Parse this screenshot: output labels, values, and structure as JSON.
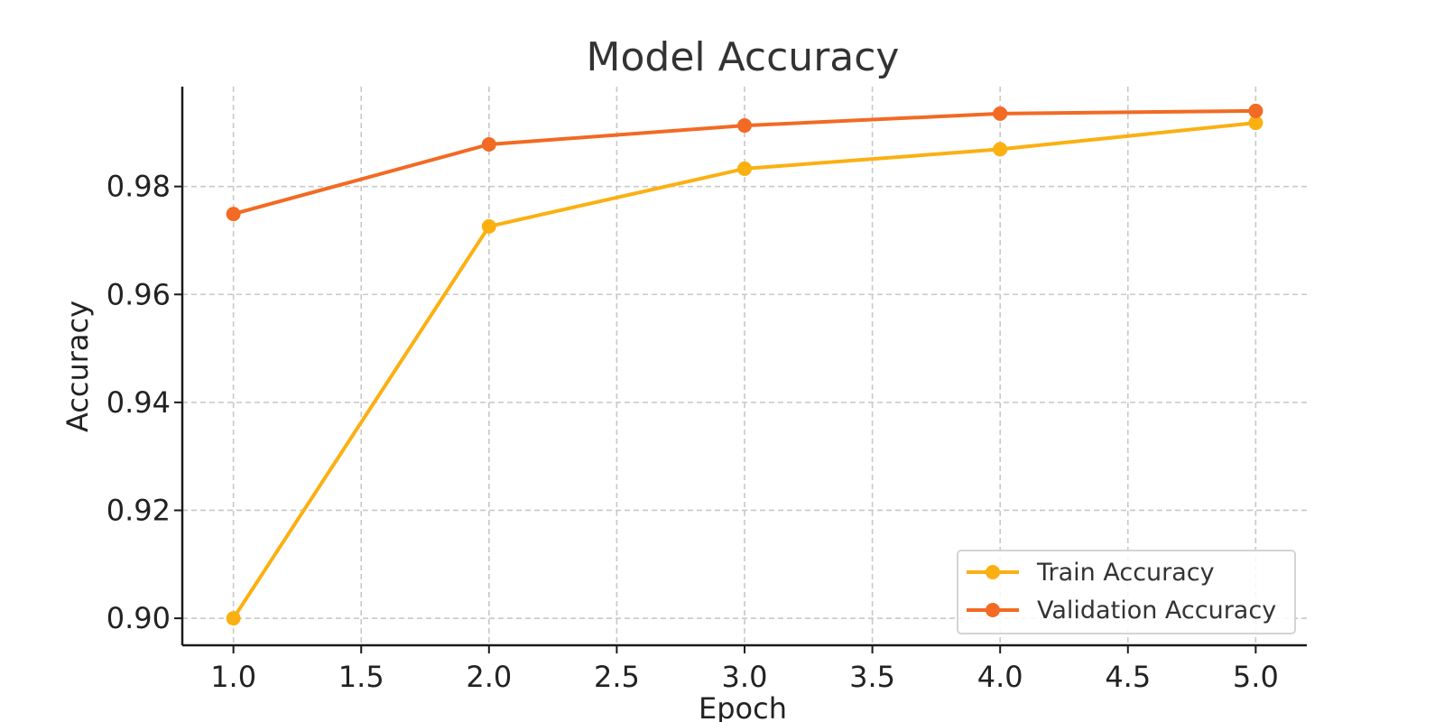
{
  "chart_data": {
    "type": "line",
    "title": "Model Accuracy",
    "xlabel": "Epoch",
    "ylabel": "Accuracy",
    "x": [
      1.0,
      2.0,
      3.0,
      4.0,
      5.0
    ],
    "xlim": [
      0.8,
      5.2
    ],
    "ylim": [
      0.895,
      0.9985
    ],
    "x_ticks": [
      1.0,
      1.5,
      2.0,
      2.5,
      3.0,
      3.5,
      4.0,
      4.5,
      5.0
    ],
    "x_tick_labels": [
      "1.0",
      "1.5",
      "2.0",
      "2.5",
      "3.0",
      "3.5",
      "4.0",
      "4.5",
      "5.0"
    ],
    "y_ticks": [
      0.9,
      0.92,
      0.94,
      0.96,
      0.98
    ],
    "y_tick_labels": [
      "0.90",
      "0.92",
      "0.94",
      "0.96",
      "0.98"
    ],
    "grid": true,
    "legend_position": "lower-right",
    "series": [
      {
        "name": "Train Accuracy",
        "color": "#FBB012",
        "marker": "circle",
        "values": [
          0.9,
          0.9726,
          0.9833,
          0.9869,
          0.9918
        ]
      },
      {
        "name": "Validation Accuracy",
        "color": "#F26A23",
        "marker": "circle",
        "values": [
          0.9749,
          0.9878,
          0.9913,
          0.9935,
          0.994
        ]
      }
    ]
  }
}
